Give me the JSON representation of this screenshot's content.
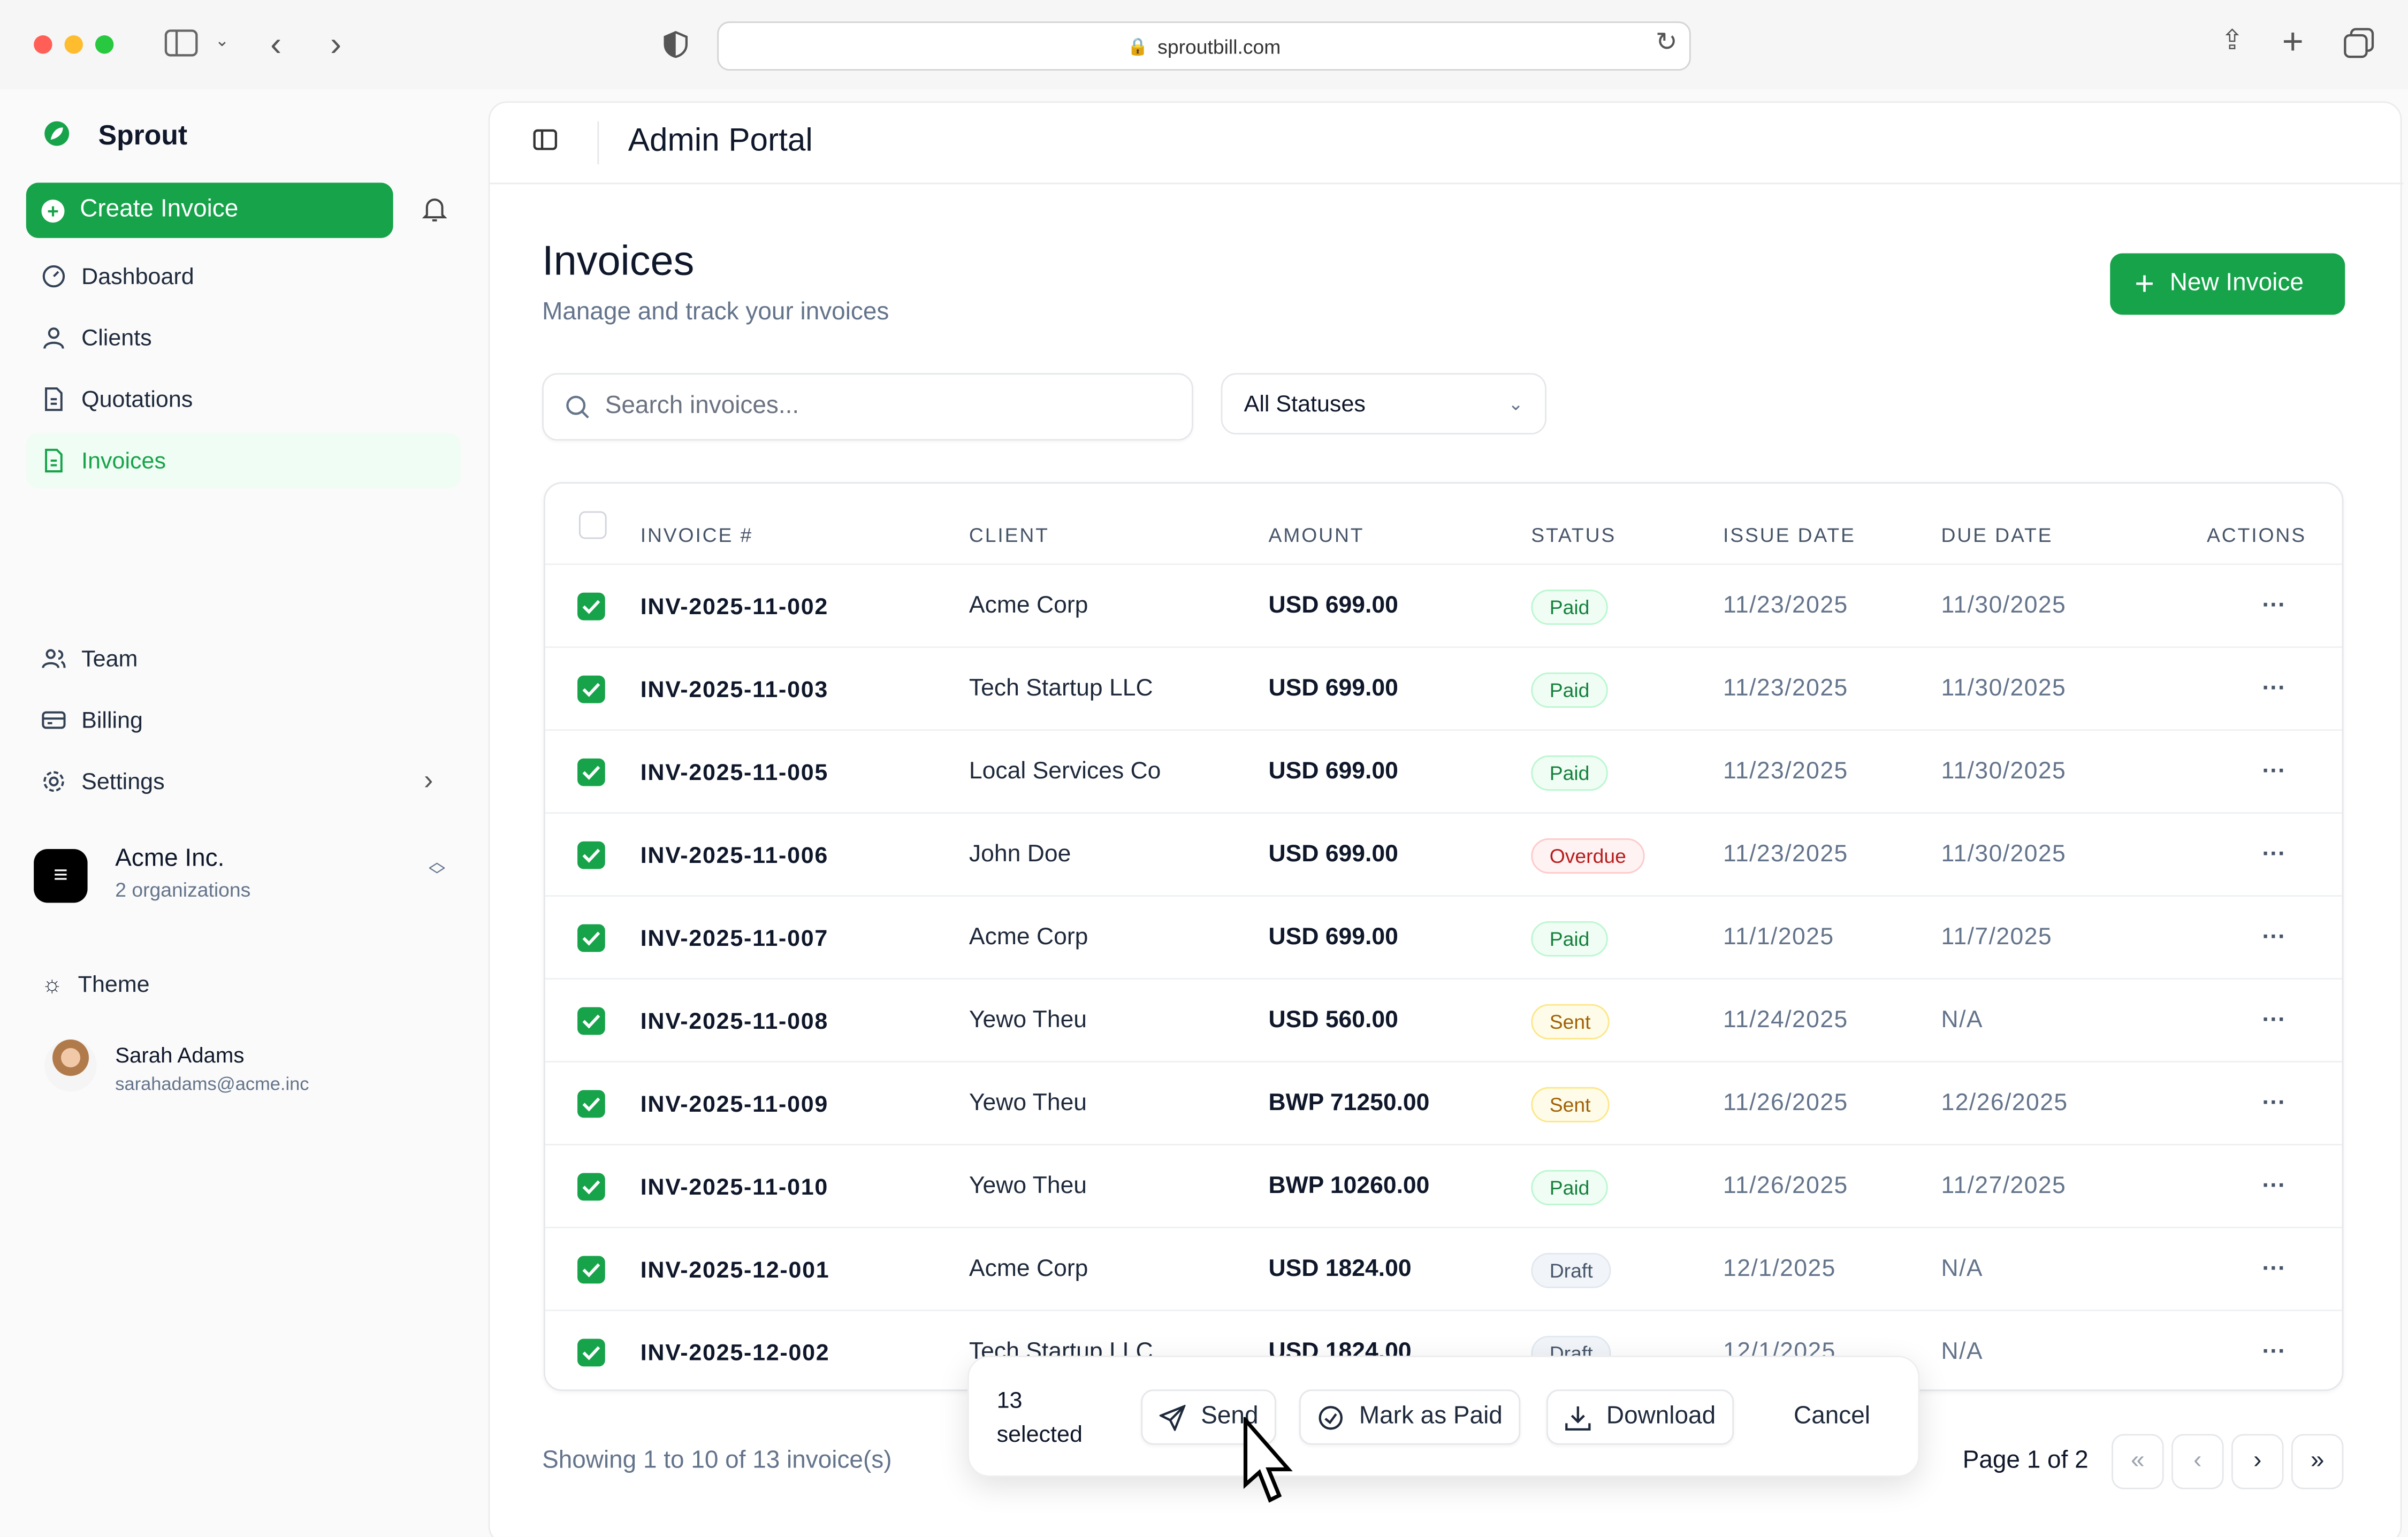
{
  "browser": {
    "url": "sproutbill.com"
  },
  "sidebar": {
    "brand": "Sprout",
    "create_label": "Create Invoice",
    "nav": [
      {
        "label": "Dashboard",
        "icon": "dashboard-icon"
      },
      {
        "label": "Clients",
        "icon": "user-icon"
      },
      {
        "label": "Quotations",
        "icon": "document-icon"
      },
      {
        "label": "Invoices",
        "icon": "invoice-icon",
        "active": true
      }
    ],
    "bottom_nav": [
      {
        "label": "Team",
        "icon": "team-icon"
      },
      {
        "label": "Billing",
        "icon": "card-icon"
      },
      {
        "label": "Settings",
        "icon": "gear-icon"
      }
    ],
    "org": {
      "name": "Acme Inc.",
      "sub": "2 organizations"
    },
    "theme_label": "Theme",
    "user": {
      "name": "Sarah Adams",
      "email": "sarahadams@acme.inc"
    }
  },
  "header": {
    "title": "Admin Portal"
  },
  "page": {
    "title": "Invoices",
    "subtitle": "Manage and track your invoices",
    "new_label": "New Invoice",
    "search_placeholder": "Search invoices...",
    "status_filter": "All Statuses"
  },
  "table": {
    "columns": [
      "INVOICE #",
      "CLIENT",
      "AMOUNT",
      "STATUS",
      "ISSUE DATE",
      "DUE DATE",
      "ACTIONS"
    ],
    "rows": [
      {
        "id": "INV-2025-11-002",
        "client": "Acme Corp",
        "amount": "USD 699.00",
        "status": "Paid",
        "issue": "11/23/2025",
        "due": "11/30/2025",
        "checked": true
      },
      {
        "id": "INV-2025-11-003",
        "client": "Tech Startup LLC",
        "amount": "USD 699.00",
        "status": "Paid",
        "issue": "11/23/2025",
        "due": "11/30/2025",
        "checked": true
      },
      {
        "id": "INV-2025-11-005",
        "client": "Local Services Co",
        "amount": "USD 699.00",
        "status": "Paid",
        "issue": "11/23/2025",
        "due": "11/30/2025",
        "checked": true
      },
      {
        "id": "INV-2025-11-006",
        "client": "John Doe",
        "amount": "USD 699.00",
        "status": "Overdue",
        "issue": "11/23/2025",
        "due": "11/30/2025",
        "checked": true
      },
      {
        "id": "INV-2025-11-007",
        "client": "Acme Corp",
        "amount": "USD 699.00",
        "status": "Paid",
        "issue": "11/1/2025",
        "due": "11/7/2025",
        "checked": true
      },
      {
        "id": "INV-2025-11-008",
        "client": "Yewo Theu",
        "amount": "USD 560.00",
        "status": "Sent",
        "issue": "11/24/2025",
        "due": "N/A",
        "checked": true
      },
      {
        "id": "INV-2025-11-009",
        "client": "Yewo Theu",
        "amount": "BWP 71250.00",
        "status": "Sent",
        "issue": "11/26/2025",
        "due": "12/26/2025",
        "checked": true
      },
      {
        "id": "INV-2025-11-010",
        "client": "Yewo Theu",
        "amount": "BWP 10260.00",
        "status": "Paid",
        "issue": "11/26/2025",
        "due": "11/27/2025",
        "checked": true
      },
      {
        "id": "INV-2025-12-001",
        "client": "Acme Corp",
        "amount": "USD 1824.00",
        "status": "Draft",
        "issue": "12/1/2025",
        "due": "N/A",
        "checked": true
      },
      {
        "id": "INV-2025-12-002",
        "client": "Tech Startup LLC",
        "amount": "USD 1824.00",
        "status": "Draft",
        "issue": "12/1/2025",
        "due": "N/A",
        "checked": true
      }
    ]
  },
  "status_colors": {
    "Paid": [
      "#f0fdf4",
      "#bbf7d0",
      "#15803d"
    ],
    "Overdue": [
      "#fef2f2",
      "#fecaca",
      "#b91c1c"
    ],
    "Sent": [
      "#fefce8",
      "#fde68a",
      "#a16207"
    ],
    "Draft": [
      "#f1f5f9",
      "#e2e8f0",
      "#475569"
    ]
  },
  "bulk": {
    "count": "13",
    "selected": "selected",
    "send": "Send",
    "mark_paid": "Mark as Paid",
    "download": "Download",
    "cancel": "Cancel"
  },
  "footer": {
    "showing": "Showing 1 to 10 of 13 invoice(s)",
    "page": "Page 1 of 2"
  },
  "accent": "#16a34a"
}
